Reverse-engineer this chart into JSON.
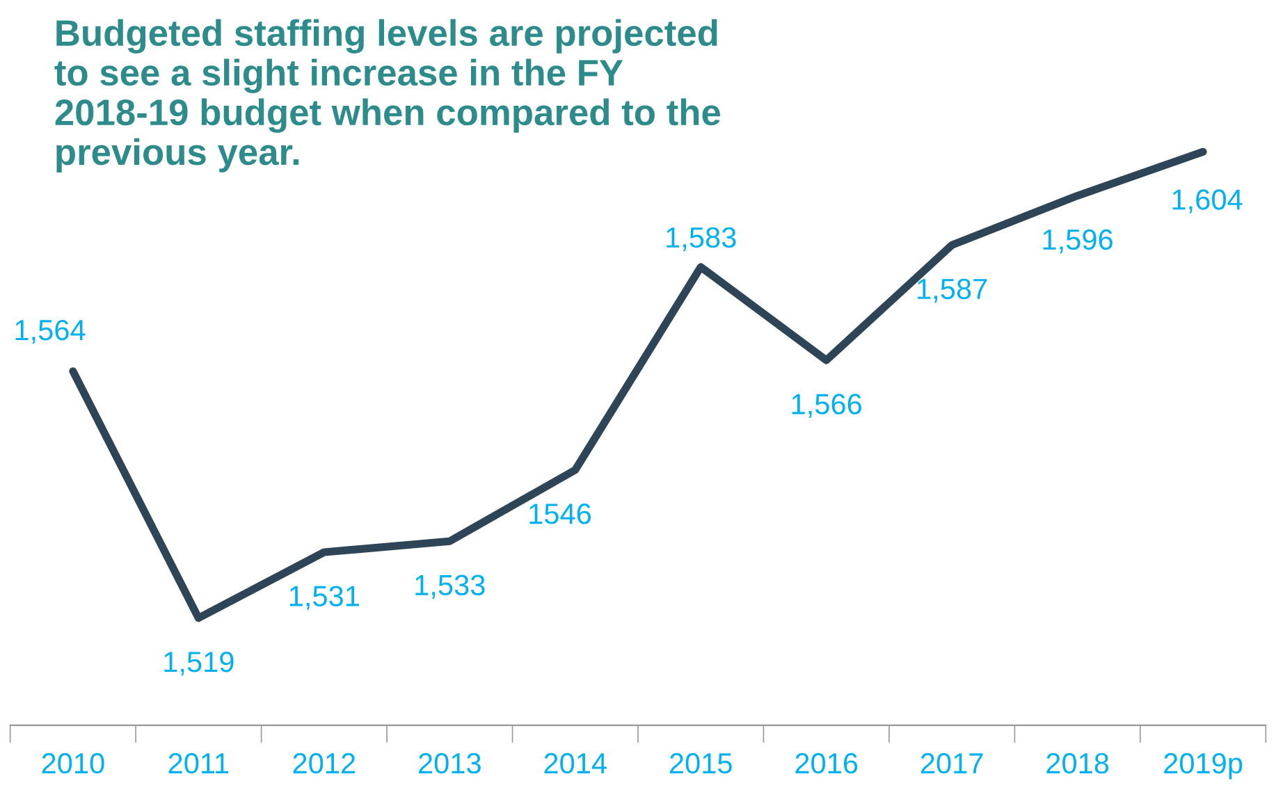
{
  "chart_data": {
    "type": "line",
    "title": "Budgeted staffing levels are projected to see a slight increase in the FY 2018-19 budget when compared to the previous year.",
    "categories": [
      "2010",
      "2011",
      "2012",
      "2013",
      "2014",
      "2015",
      "2016",
      "2017",
      "2018",
      "2019p"
    ],
    "series": [
      {
        "color": "#2e4457",
        "values": [
          1564,
          1519,
          1531,
          1533,
          1546,
          1583,
          1566,
          1587,
          1596,
          1604
        ],
        "value_labels": [
          "1,564",
          "1,519",
          "1,531",
          "1,533",
          "1546",
          "1,583",
          "1,566",
          "1,587",
          "1,596",
          "1,604"
        ]
      }
    ],
    "grid": false,
    "legend": false,
    "marker": "none",
    "line_style": "solid",
    "tick_labels": "x"
  }
}
